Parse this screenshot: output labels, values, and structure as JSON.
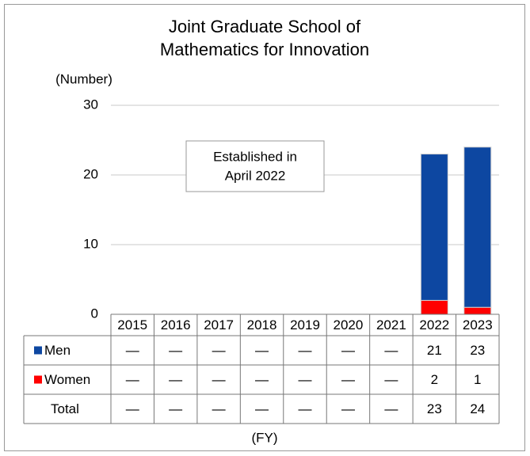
{
  "chart_data": {
    "type": "bar",
    "stacked": true,
    "title": [
      "Joint Graduate School of",
      "Mathematics for Innovation"
    ],
    "y_label": "(Number)",
    "x_label": "(FY)",
    "annotation": [
      "Established in",
      "April 2022"
    ],
    "categories": [
      "2015",
      "2016",
      "2017",
      "2018",
      "2019",
      "2020",
      "2021",
      "2022",
      "2023"
    ],
    "series": [
      {
        "name": "Men",
        "color": "#0d47a1",
        "values": [
          null,
          null,
          null,
          null,
          null,
          null,
          null,
          21,
          23
        ],
        "value_labels": [
          "—",
          "—",
          "—",
          "—",
          "—",
          "—",
          "—",
          "21",
          "23"
        ]
      },
      {
        "name": "Women",
        "color": "#ff0000",
        "values": [
          null,
          null,
          null,
          null,
          null,
          null,
          null,
          2,
          1
        ],
        "value_labels": [
          "—",
          "—",
          "—",
          "—",
          "—",
          "—",
          "—",
          "2",
          "1"
        ]
      }
    ],
    "total": {
      "label": "Total",
      "values": [
        "—",
        "—",
        "—",
        "—",
        "—",
        "—",
        "—",
        "23",
        "24"
      ]
    },
    "ylim": [
      0,
      30
    ],
    "yticks": [
      0,
      10,
      20,
      30
    ],
    "grid": true
  }
}
